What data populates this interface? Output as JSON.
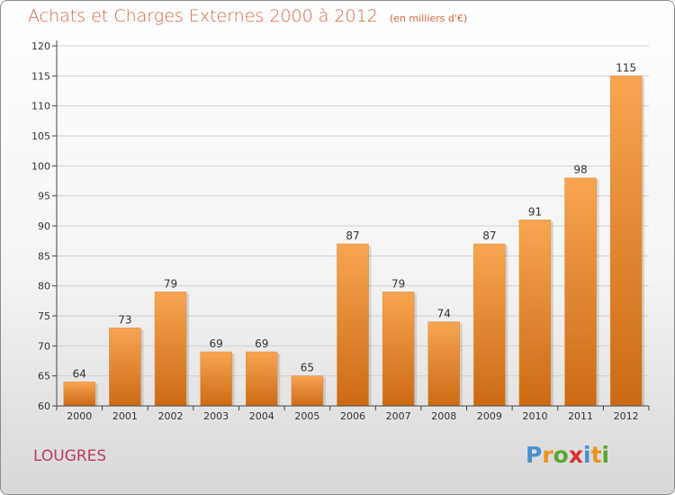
{
  "header": {
    "title": "Achats et Charges Externes 2000 à 2012",
    "subtitle": "(en milliers d'€)"
  },
  "footer": {
    "commune": "LOUGRES",
    "logo_letters": [
      "P",
      "r",
      "o",
      "x",
      "i",
      "t",
      "i"
    ],
    "logo_colors": [
      "#4a90d0",
      "#e8941e",
      "#5aa832",
      "#e03030",
      "#4a90d0",
      "#e8941e",
      "#5aa832"
    ]
  },
  "colors": {
    "bar_top": "#f7a551",
    "bar_bottom": "#cc6a14",
    "title": "#d2663f",
    "commune": "#c03a60",
    "axis": "#444444",
    "grid": "#d0d0d0"
  },
  "chart_data": {
    "type": "bar",
    "title": "Achats et Charges Externes 2000 à 2012",
    "subtitle": "(en milliers d'€)",
    "categories": [
      "2000",
      "2001",
      "2002",
      "2003",
      "2004",
      "2005",
      "2006",
      "2007",
      "2008",
      "2009",
      "2010",
      "2011",
      "2012"
    ],
    "values": [
      64,
      73,
      79,
      69,
      69,
      65,
      87,
      79,
      74,
      87,
      91,
      98,
      115
    ],
    "ylim": [
      60,
      120
    ],
    "yticks": [
      60,
      65,
      70,
      75,
      80,
      85,
      90,
      95,
      100,
      105,
      110,
      115,
      120
    ],
    "grid": true,
    "legend": "none"
  }
}
